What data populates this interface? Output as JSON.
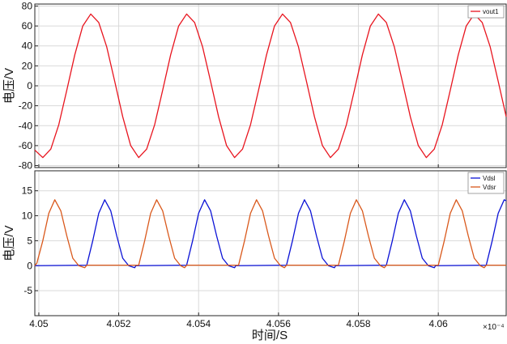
{
  "figure": {
    "shared_xlabel": "时间/S",
    "x_exponent": "×10⁻⁴"
  },
  "chart_data": [
    {
      "type": "line",
      "xlabel": "",
      "ylabel": "电压/V",
      "xlim": [
        4.0499,
        4.0617
      ],
      "ylim": [
        -82,
        82
      ],
      "yticks": [
        -80,
        -60,
        -40,
        -20,
        0,
        20,
        40,
        60,
        80
      ],
      "xticks": [
        4.05,
        4.052,
        4.054,
        4.056,
        4.058,
        4.06
      ],
      "grid": true,
      "legend_position": "top-right",
      "series": [
        {
          "name": "vout1",
          "color": "#e8141e",
          "x": [
            4.0499,
            4.0501,
            4.0503,
            4.0505,
            4.0507,
            4.0509,
            4.0511,
            4.0513,
            4.0515,
            4.0517,
            4.0519,
            4.0521,
            4.0523,
            4.0525,
            4.0527,
            4.0529,
            4.0531,
            4.0533,
            4.0535,
            4.0537,
            4.0539,
            4.0541,
            4.0543,
            4.0545,
            4.0547,
            4.0549,
            4.0551,
            4.0553,
            4.0555,
            4.0557,
            4.0559,
            4.0561,
            4.0563,
            4.0565,
            4.0567,
            4.0569,
            4.0571,
            4.0573,
            4.0575,
            4.0577,
            4.0579,
            4.0581,
            4.0583,
            4.0585,
            4.0587,
            4.0589,
            4.0591,
            4.0593,
            4.0595,
            4.0597,
            4.0599,
            4.0601,
            4.0603,
            4.0605,
            4.0607,
            4.0609,
            4.0611,
            4.0613,
            4.0615,
            4.0617
          ],
          "values": [
            -64.5,
            -72,
            -63.5,
            -39,
            -4.5,
            31,
            60,
            72,
            63.5,
            39,
            4.5,
            -31,
            -60,
            -72,
            -63.5,
            -39,
            -4.5,
            31,
            60,
            72,
            63.5,
            39,
            4.5,
            -31,
            -60,
            -72,
            -63.5,
            -39,
            -4.5,
            31,
            60,
            72,
            63.5,
            39,
            4.5,
            -31,
            -60,
            -72,
            -63.5,
            -39,
            -4.5,
            31,
            60,
            72,
            63.5,
            39,
            4.5,
            -31,
            -60,
            -72,
            -63.5,
            -39,
            -4.5,
            31,
            60,
            72,
            63.5,
            39,
            4.5,
            -31
          ]
        }
      ]
    },
    {
      "type": "line",
      "xlabel": "时间/S",
      "ylabel": "电压/V",
      "xlim": [
        4.0499,
        4.0617
      ],
      "ylim": [
        -10,
        19
      ],
      "yticks": [
        -5,
        0,
        5,
        10,
        15
      ],
      "xticks": [
        4.05,
        4.052,
        4.054,
        4.056,
        4.058,
        4.06
      ],
      "grid": true,
      "legend_position": "top-right",
      "series": [
        {
          "name": "Vdsl",
          "color": "#0b12d6",
          "x": [
            4.0499,
            4.0512,
            4.05135,
            4.0515,
            4.05165,
            4.0518,
            4.05195,
            4.0521,
            4.05225,
            4.0524,
            4.05243,
            4.0537,
            4.05385,
            4.054,
            4.05415,
            4.0543,
            4.05445,
            4.0546,
            4.05475,
            4.0549,
            4.05493,
            4.0562,
            4.05635,
            4.0565,
            4.05665,
            4.0568,
            4.05695,
            4.0571,
            4.05725,
            4.0574,
            4.05743,
            4.0587,
            4.05885,
            4.059,
            4.05915,
            4.0593,
            4.05945,
            4.0596,
            4.05975,
            4.0599,
            4.05993,
            4.0612,
            4.06135,
            4.0615,
            4.06165,
            4.0617
          ],
          "values": [
            0,
            0.1,
            5,
            10.5,
            13.2,
            11,
            6,
            1.5,
            0,
            -0.4,
            0,
            0.1,
            5,
            10.5,
            13.2,
            11,
            6,
            1.5,
            0,
            -0.4,
            0,
            0.1,
            5,
            10.5,
            13.2,
            11,
            6,
            1.5,
            0,
            -0.4,
            0,
            0.1,
            5,
            10.5,
            13.2,
            11,
            6,
            1.5,
            0,
            -0.4,
            0,
            0.1,
            5,
            10.5,
            13.2,
            13
          ]
        },
        {
          "name": "Vdsr",
          "color": "#d9581b",
          "x": [
            4.0499,
            4.04995,
            4.0501,
            4.05025,
            4.0504,
            4.05055,
            4.0507,
            4.05085,
            4.051,
            4.05115,
            4.0512,
            4.0525,
            4.05265,
            4.0528,
            4.05295,
            4.0531,
            4.05325,
            4.0534,
            4.05355,
            4.05365,
            4.0537,
            4.055,
            4.05515,
            4.0553,
            4.05545,
            4.0556,
            4.05575,
            4.0559,
            4.05605,
            4.05615,
            4.0562,
            4.0575,
            4.05765,
            4.0578,
            4.05795,
            4.0581,
            4.05825,
            4.0584,
            4.05855,
            4.05865,
            4.0587,
            4.06,
            4.06015,
            4.0603,
            4.06045,
            4.0606,
            4.06075,
            4.0609,
            4.06105,
            4.06115,
            4.0612,
            4.0617
          ],
          "values": [
            0,
            0.5,
            5,
            10.5,
            13.2,
            11,
            6,
            1.5,
            0,
            -0.4,
            0.1,
            0.1,
            5,
            10.5,
            13.2,
            11,
            6,
            1.5,
            0,
            -0.4,
            0.1,
            0.1,
            5,
            10.5,
            13.2,
            11,
            6,
            1.5,
            0,
            -0.4,
            0.1,
            0.1,
            5,
            10.5,
            13.2,
            11,
            6,
            1.5,
            0,
            -0.4,
            0.1,
            0.1,
            5,
            10.5,
            13.2,
            11,
            6,
            1.5,
            0,
            -0.4,
            0.1,
            0.1
          ]
        }
      ]
    }
  ]
}
